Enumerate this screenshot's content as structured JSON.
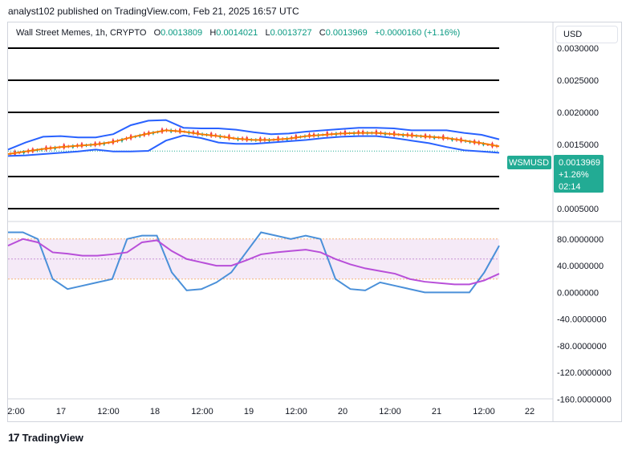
{
  "header": {
    "publisher_line": "analyst102 published on TradingView.com, Feb 21, 2025 16:57 UTC"
  },
  "legend": {
    "symbol": "Wall Street Memes, 1h, CRYPTO",
    "open_label": "O",
    "open": "0.0013809",
    "high_label": "H",
    "high": "0.0014021",
    "low_label": "L",
    "low": "0.0013727",
    "close_label": "C",
    "close": "0.0013969",
    "change": "+0.0000160 (+1.16%)"
  },
  "currency_button": "USD",
  "price_tag": {
    "symbol": "WSMUSD",
    "price": "0.0013969",
    "change": "+1.26%",
    "countdown": "02:14"
  },
  "footer": {
    "brand": "TradingView"
  },
  "colors": {
    "bollinger": "#2962ff",
    "moving_average": "#f57c00",
    "stoch_k": "#4a90d9",
    "stoch_d": "#b84fd9",
    "up": "#089981",
    "down": "#f23645",
    "tag": "#22ab94"
  },
  "chart_data": [
    {
      "type": "line",
      "title": "Wall Street Memes, 1h, CRYPTO",
      "ylim": [
        0.0003,
        0.0034
      ],
      "y_ticks": [
        "0.0030000",
        "0.0025000",
        "0.0020000",
        "0.0015000",
        "0.0005000"
      ],
      "x_ticks": [
        "2:00",
        "17",
        "12:00",
        "18",
        "12:00",
        "19",
        "12:00",
        "20",
        "12:00",
        "21",
        "12:00",
        "22"
      ],
      "horizontal_lines": [
        0.003,
        0.0025,
        0.002,
        0.001,
        0.0005
      ],
      "series": [
        {
          "role": "upper_band",
          "values": [
            0.00142,
            0.00153,
            0.00162,
            0.00163,
            0.00161,
            0.00161,
            0.00166,
            0.0018,
            0.00187,
            0.00188,
            0.00176,
            0.00175,
            0.00175,
            0.00173,
            0.00169,
            0.00166,
            0.00167,
            0.0017,
            0.00172,
            0.00174,
            0.00176,
            0.00176,
            0.00175,
            0.00172,
            0.00172,
            0.00172,
            0.00168,
            0.00165,
            0.00158
          ]
        },
        {
          "role": "moving_average",
          "values": [
            0.00135,
            0.00139,
            0.00143,
            0.00146,
            0.00148,
            0.0015,
            0.00154,
            0.00161,
            0.00167,
            0.00172,
            0.0017,
            0.00166,
            0.00163,
            0.00159,
            0.00157,
            0.00157,
            0.00159,
            0.00163,
            0.00165,
            0.00167,
            0.00168,
            0.00168,
            0.00166,
            0.00164,
            0.00162,
            0.0016,
            0.00156,
            0.00152,
            0.00147
          ]
        },
        {
          "role": "lower_band",
          "values": [
            0.00132,
            0.00133,
            0.00135,
            0.00137,
            0.00139,
            0.00142,
            0.00139,
            0.00139,
            0.0014,
            0.00156,
            0.00164,
            0.0016,
            0.00153,
            0.00151,
            0.00151,
            0.00153,
            0.00155,
            0.00157,
            0.0016,
            0.00162,
            0.00163,
            0.00163,
            0.0016,
            0.00156,
            0.00152,
            0.00146,
            0.00141,
            0.00139,
            0.00137
          ]
        }
      ],
      "last_price": 0.0013969
    },
    {
      "type": "line",
      "ylim": [
        -175,
        105
      ],
      "y_ticks": [
        "80.0000000",
        "40.0000000",
        "0.0000000",
        "-40.0000000",
        "-80.0000000",
        "-120.0000000",
        "-160.0000000"
      ],
      "band": [
        20,
        80
      ],
      "series": [
        {
          "role": "stoch_k",
          "values": [
            90,
            90,
            80,
            20,
            5,
            10,
            15,
            20,
            80,
            85,
            85,
            30,
            3,
            5,
            15,
            30,
            60,
            90,
            85,
            80,
            85,
            80,
            20,
            5,
            3,
            15,
            10,
            5,
            0,
            0,
            0,
            0,
            30,
            70
          ]
        },
        {
          "role": "stoch_d",
          "values": [
            70,
            80,
            75,
            60,
            58,
            55,
            55,
            57,
            60,
            75,
            78,
            62,
            50,
            45,
            40,
            40,
            48,
            57,
            60,
            62,
            64,
            60,
            50,
            42,
            36,
            32,
            28,
            20,
            16,
            14,
            12,
            12,
            18,
            28
          ]
        }
      ]
    }
  ]
}
